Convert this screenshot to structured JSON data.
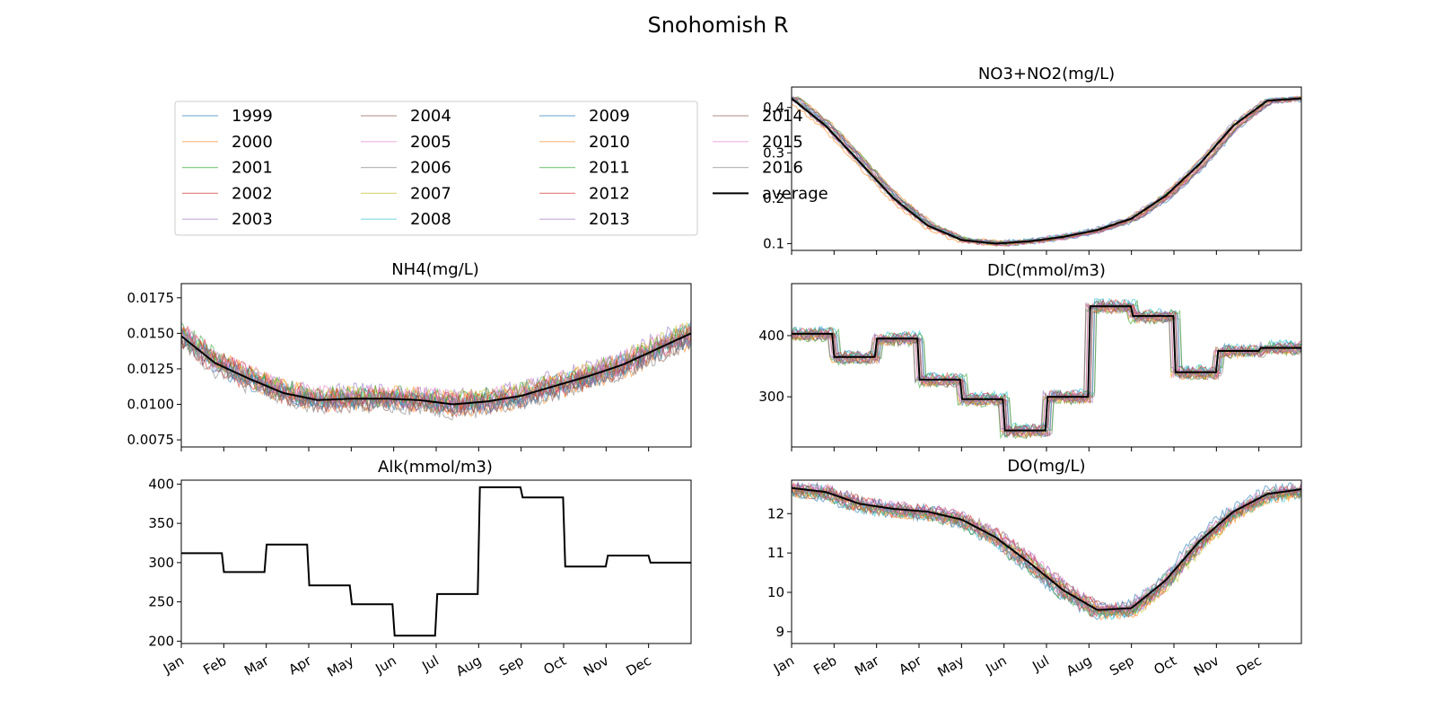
{
  "figure_title": "Snohomish R",
  "legend": {
    "entries": [
      {
        "label": "1999",
        "color": "#1f77b4"
      },
      {
        "label": "2000",
        "color": "#ff7f0e"
      },
      {
        "label": "2001",
        "color": "#2ca02c"
      },
      {
        "label": "2002",
        "color": "#d62728"
      },
      {
        "label": "2003",
        "color": "#9467bd"
      },
      {
        "label": "2004",
        "color": "#8c564b"
      },
      {
        "label": "2005",
        "color": "#e377c2"
      },
      {
        "label": "2006",
        "color": "#7f7f7f"
      },
      {
        "label": "2007",
        "color": "#bcbd22"
      },
      {
        "label": "2008",
        "color": "#17becf"
      },
      {
        "label": "2009",
        "color": "#1f77b4"
      },
      {
        "label": "2010",
        "color": "#ff7f0e"
      },
      {
        "label": "2011",
        "color": "#2ca02c"
      },
      {
        "label": "2012",
        "color": "#d62728"
      },
      {
        "label": "2013",
        "color": "#9467bd"
      },
      {
        "label": "2014",
        "color": "#8c564b"
      },
      {
        "label": "2015",
        "color": "#e377c2"
      },
      {
        "label": "2016",
        "color": "#7f7f7f"
      },
      {
        "label": "average",
        "color": "#000000"
      }
    ]
  },
  "chart_data": [
    {
      "id": "no3",
      "type": "line",
      "title": "NO3+NO2(mg/L)",
      "ylim": [
        0.085,
        0.445
      ],
      "yticks": [
        0.1,
        0.2,
        0.3,
        0.4
      ],
      "yticklabels": [
        "0.1",
        "0.2",
        "0.3",
        "0.4"
      ],
      "months": [
        "Jan",
        "Feb",
        "Mar",
        "Apr",
        "May",
        "Jun",
        "Jul",
        "Aug",
        "Sep",
        "Oct",
        "Nov",
        "Dec"
      ],
      "show_month_labels": false,
      "average": [
        0.42,
        0.36,
        0.28,
        0.2,
        0.14,
        0.108,
        0.1,
        0.105,
        0.115,
        0.13,
        0.155,
        0.205,
        0.275,
        0.36,
        0.415,
        0.42
      ],
      "year_lines": 18,
      "year_spread": 0.006
    },
    {
      "id": "nh4",
      "type": "line",
      "title": "NH4(mg/L)",
      "ylim": [
        0.007,
        0.0185
      ],
      "yticks": [
        0.0075,
        0.01,
        0.0125,
        0.015,
        0.0175
      ],
      "yticklabels": [
        "0.0075",
        "0.0100",
        "0.0125",
        "0.0150",
        "0.0175"
      ],
      "months": [
        "Jan",
        "Feb",
        "Mar",
        "Apr",
        "May",
        "Jun",
        "Jul",
        "Aug",
        "Sep",
        "Oct",
        "Nov",
        "Dec"
      ],
      "show_month_labels": false,
      "average": [
        0.0148,
        0.0129,
        0.0118,
        0.0108,
        0.0103,
        0.0104,
        0.0104,
        0.0103,
        0.01,
        0.0102,
        0.0106,
        0.0113,
        0.012,
        0.0128,
        0.0139,
        0.015
      ],
      "year_lines": 18,
      "year_spread": 0.0009
    },
    {
      "id": "dic",
      "type": "line",
      "title": "DIC(mmol/m3)",
      "ylim": [
        218,
        485
      ],
      "yticks": [
        300,
        400
      ],
      "yticklabels": [
        "300",
        "400"
      ],
      "months": [
        "Jan",
        "Feb",
        "Mar",
        "Apr",
        "May",
        "Jun",
        "Jul",
        "Aug",
        "Sep",
        "Oct",
        "Nov",
        "Dec"
      ],
      "show_month_labels": false,
      "monthly_steps": [
        403,
        365,
        395,
        328,
        296,
        245,
        300,
        448,
        432,
        340,
        375,
        380
      ],
      "year_lines": 18,
      "year_spread": 10
    },
    {
      "id": "alk",
      "type": "line",
      "title": "Alk(mmol/m3)",
      "ylim": [
        197,
        405
      ],
      "yticks": [
        200,
        250,
        300,
        350,
        400
      ],
      "yticklabels": [
        "200",
        "250",
        "300",
        "350",
        "400"
      ],
      "months": [
        "Jan",
        "Feb",
        "Mar",
        "Apr",
        "May",
        "Jun",
        "Jul",
        "Aug",
        "Sep",
        "Oct",
        "Nov",
        "Dec"
      ],
      "show_month_labels": true,
      "monthly_steps": [
        312,
        288,
        323,
        271,
        247,
        207,
        260,
        396,
        383,
        295,
        309,
        300
      ],
      "year_lines": 0,
      "year_spread": 0
    },
    {
      "id": "do",
      "type": "line",
      "title": "DO(mg/L)",
      "ylim": [
        8.7,
        12.85
      ],
      "yticks": [
        9,
        10,
        11,
        12
      ],
      "yticklabels": [
        "9",
        "10",
        "11",
        "12"
      ],
      "months": [
        "Jan",
        "Feb",
        "Mar",
        "Apr",
        "May",
        "Jun",
        "Jul",
        "Aug",
        "Sep",
        "Oct",
        "Nov",
        "Dec"
      ],
      "show_month_labels": true,
      "average": [
        12.65,
        12.55,
        12.25,
        12.12,
        12.05,
        11.85,
        11.4,
        10.75,
        10.05,
        9.55,
        9.6,
        10.3,
        11.3,
        12.05,
        12.5,
        12.62
      ],
      "year_lines": 18,
      "year_spread": 0.2
    }
  ]
}
